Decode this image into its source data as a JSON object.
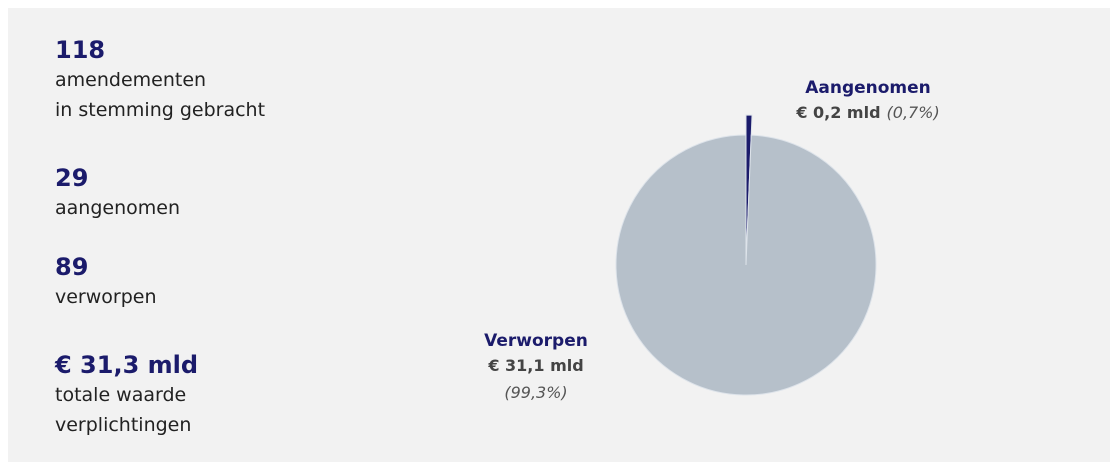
{
  "stats": [
    {
      "number": "118",
      "lines": [
        "amendementen",
        "in stemming gebracht"
      ]
    },
    {
      "number": "29",
      "lines": [
        "aangenomen"
      ]
    },
    {
      "number": "89",
      "lines": [
        "verworpen"
      ]
    },
    {
      "number": "€ 31,3 mld",
      "lines": [
        "totale waarde",
        "verplichtingen"
      ]
    }
  ],
  "chart_data": {
    "type": "pie",
    "categories": [
      "Aangenomen",
      "Verworpen"
    ],
    "values": [
      0.2,
      31.1
    ],
    "value_labels": [
      "€ 0,2 mld",
      "€ 31,1 mld"
    ],
    "percents": [
      0.7,
      99.3
    ],
    "percent_labels": [
      "(0,7%)",
      "(99,3%)"
    ],
    "colors": [
      "#1b1b6b",
      "#b6c0ca"
    ]
  }
}
